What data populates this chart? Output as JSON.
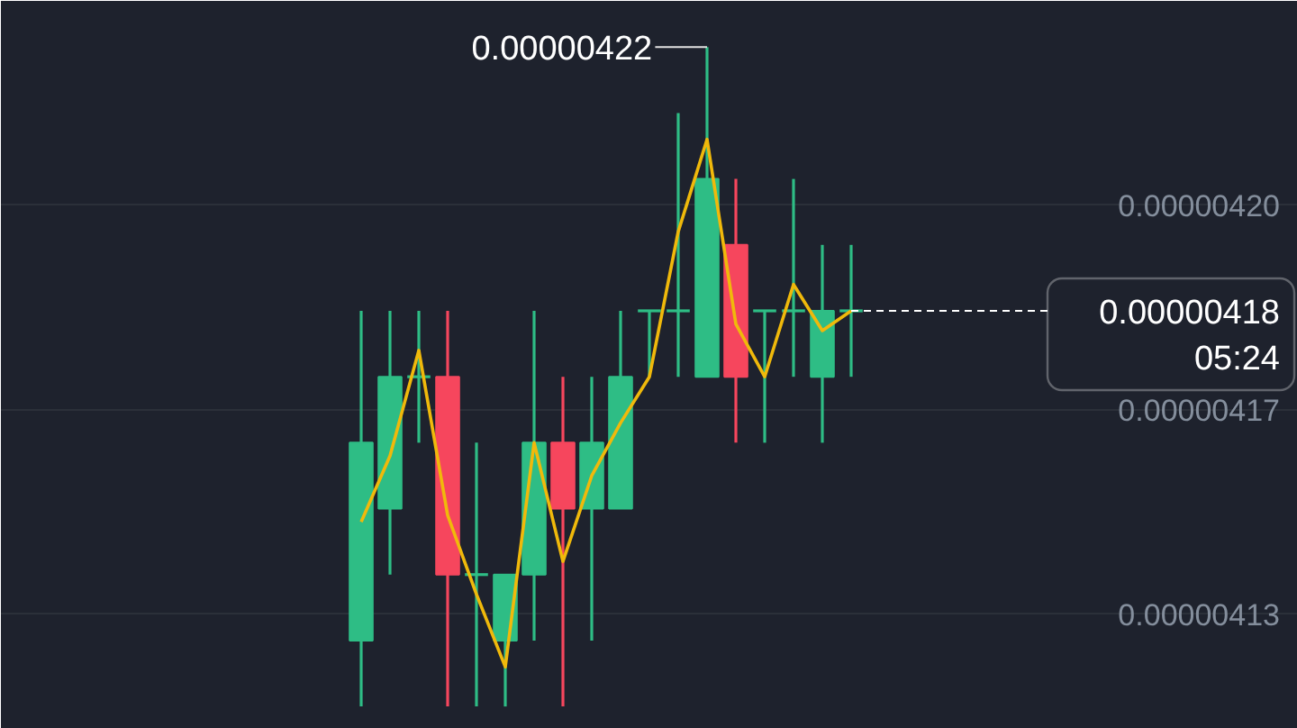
{
  "chart_data": {
    "type": "candlestick",
    "categories": [
      null,
      null,
      null,
      null,
      null,
      null,
      null,
      null,
      null,
      null,
      null,
      null,
      null,
      null,
      null,
      null,
      null,
      null,
      null,
      null,
      null,
      null,
      null,
      null,
      null,
      null,
      null,
      null,
      null,
      null,
      null,
      null,
      null,
      null,
      null,
      null,
      null,
      null,
      null,
      null,
      null,
      null,
      null,
      null,
      null
    ],
    "ohlc": [
      null,
      null,
      null,
      null,
      null,
      null,
      null,
      null,
      null,
      null,
      null,
      null,
      [
        4.13e-06,
        4.18e-06,
        4.12e-06,
        4.16e-06
      ],
      [
        4.15e-06,
        4.18e-06,
        4.14e-06,
        4.17e-06
      ],
      [
        4.17e-06,
        4.18e-06,
        4.16e-06,
        4.17e-06
      ],
      [
        4.17e-06,
        4.18e-06,
        4.12e-06,
        4.14e-06
      ],
      [
        4.14e-06,
        4.16e-06,
        4.12e-06,
        4.14e-06
      ],
      [
        4.13e-06,
        4.14e-06,
        4.12e-06,
        4.14e-06
      ],
      [
        4.14e-06,
        4.18e-06,
        4.13e-06,
        4.16e-06
      ],
      [
        4.16e-06,
        4.17e-06,
        4.12e-06,
        4.15e-06
      ],
      [
        4.15e-06,
        4.17e-06,
        4.13e-06,
        4.16e-06
      ],
      [
        4.15e-06,
        4.18e-06,
        4.15e-06,
        4.17e-06
      ],
      [
        4.18e-06,
        4.18e-06,
        4.17e-06,
        4.18e-06
      ],
      [
        4.18e-06,
        4.21e-06,
        4.17e-06,
        4.18e-06
      ],
      [
        4.17e-06,
        4.22e-06,
        4.17e-06,
        4.2e-06
      ],
      [
        4.19e-06,
        4.2e-06,
        4.16e-06,
        4.17e-06
      ],
      [
        4.18e-06,
        4.18e-06,
        4.16e-06,
        4.18e-06
      ],
      [
        4.18e-06,
        4.2e-06,
        4.17e-06,
        4.18e-06
      ],
      [
        4.17e-06,
        4.19e-06,
        4.16e-06,
        4.18e-06
      ],
      [
        4.18e-06,
        4.19e-06,
        4.17e-06,
        4.18e-06
      ],
      null,
      null,
      null,
      null,
      null,
      null,
      null,
      null,
      null,
      null,
      null,
      null,
      null,
      null,
      null
    ],
    "colors": [
      null,
      null,
      null,
      null,
      null,
      null,
      null,
      null,
      null,
      null,
      null,
      null,
      "#2ebd85",
      "#2ebd85",
      "#2ebd85",
      "#f6465d",
      "#2ebd85",
      "#2ebd85",
      "#2ebd85",
      "#f6465d",
      "#2ebd85",
      "#2ebd85",
      "#2ebd85",
      "#2ebd85",
      "#2ebd85",
      "#f6465d",
      "#2ebd85",
      "#2ebd85",
      "#2ebd85",
      "#2ebd85",
      null,
      null,
      null,
      null,
      null,
      null,
      null,
      null,
      null,
      null,
      null,
      null,
      null,
      null,
      null
    ],
    "series": [
      {
        "type": "line",
        "color": "#f0b90b",
        "values": [
          null,
          null,
          null,
          null,
          null,
          null,
          null,
          null,
          null,
          null,
          null,
          null,
          4.148e-06,
          4.158e-06,
          4.174e-06,
          4.149e-06,
          4.137e-06,
          4.126e-06,
          4.16e-06,
          4.142e-06,
          4.155e-06,
          4.163e-06,
          4.17e-06,
          4.192e-06,
          4.206e-06,
          4.178e-06,
          4.17e-06,
          4.184e-06,
          4.177e-06,
          4.18e-06,
          null,
          null,
          null,
          null,
          null,
          null,
          null,
          null,
          null,
          null,
          null,
          null,
          null,
          null,
          null
        ]
      }
    ],
    "ylim": [
      4.1166e-06,
      4.227e-06
    ],
    "yticks": [
      {
        "value": 4.196e-06,
        "label": "0.00000420"
      },
      {
        "value": 4.165e-06,
        "label": "0.00000417"
      },
      {
        "value": 4.134e-06,
        "label": "0.00000413"
      }
    ],
    "grid": "y",
    "ref_lines": [
      {
        "axis": "y",
        "value": 4.18e-06,
        "label": "0.00000418",
        "color": "#ffffff",
        "line_style": "dashed"
      }
    ],
    "annotations": [
      "0.00000422",
      "05:24"
    ]
  }
}
